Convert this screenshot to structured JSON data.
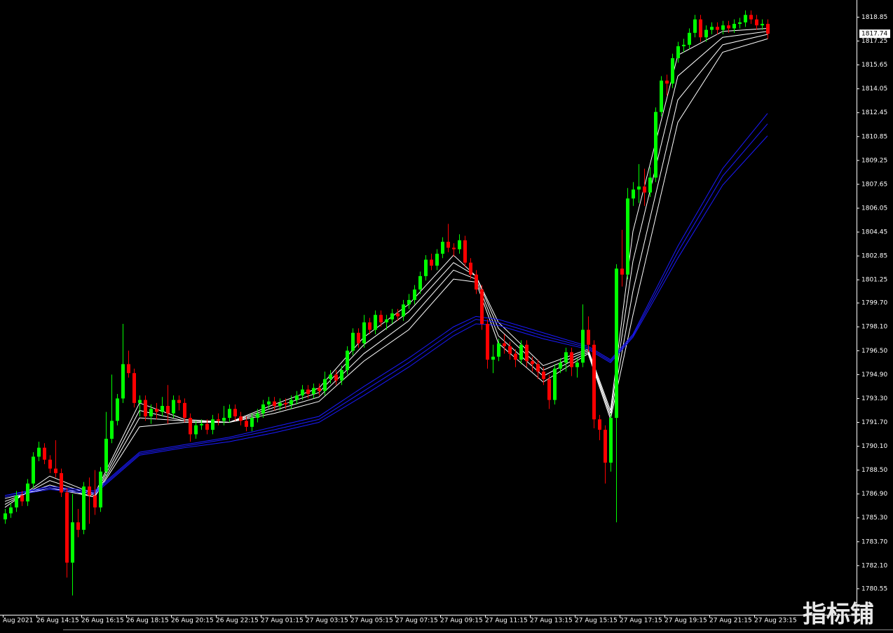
{
  "chart_data": {
    "type": "candlestick",
    "categories": [
      "Aug 2021",
      null,
      null,
      null,
      null,
      null,
      "26 Aug 14:15",
      null,
      null,
      null,
      null,
      null,
      null,
      null,
      "26 Aug 16:15",
      null,
      null,
      null,
      null,
      null,
      null,
      null,
      "26 Aug 18:15",
      null,
      null,
      null,
      null,
      null,
      null,
      null,
      "26 Aug 20:15",
      null,
      null,
      null,
      null,
      null,
      null,
      null,
      "26 Aug 22:15",
      null,
      null,
      null,
      null,
      null,
      null,
      null,
      "27 Aug 01:15",
      null,
      null,
      null,
      null,
      null,
      null,
      null,
      "27 Aug 03:15",
      null,
      null,
      null,
      null,
      null,
      null,
      null,
      "27 Aug 05:15",
      null,
      null,
      null,
      null,
      null,
      null,
      null,
      "27 Aug 07:15",
      null,
      null,
      null,
      null,
      null,
      null,
      null,
      "27 Aug 09:15",
      null,
      null,
      null,
      null,
      null,
      null,
      null,
      "27 Aug 11:15",
      null,
      null,
      null,
      null,
      null,
      null,
      null,
      "27 Aug 13:15",
      null,
      null,
      null,
      null,
      null,
      null,
      null,
      "27 Aug 15:15",
      null,
      null,
      null,
      null,
      null,
      null,
      null,
      "27 Aug 17:15",
      null,
      null,
      null,
      null,
      null,
      null,
      null,
      "27 Aug 19:15",
      null,
      null,
      null,
      null,
      null,
      null,
      null,
      "27 Aug 21:15",
      null,
      null,
      null,
      null,
      null,
      null,
      null,
      "27 Aug 23:15",
      null,
      null
    ],
    "open": [
      1785.2,
      1785.6,
      1786.0,
      1786.8,
      1786.4,
      1787.6,
      1789.4,
      1790.0,
      1789.2,
      1788.6,
      1788.3,
      1787.0,
      1782.3,
      1785.0,
      1784.5,
      1787.4,
      1786.8,
      1786.0,
      1788.4,
      1790.6,
      1791.8,
      1793.3,
      1795.6,
      1795.0,
      1793.0,
      1793.2,
      1792.1,
      1792.6,
      1792.4,
      1792.8,
      1792.3,
      1793.2,
      1793.0,
      1792.0,
      1790.9,
      1791.5,
      1791.6,
      1791.2,
      1791.9,
      1791.8,
      1792.0,
      1792.6,
      1792.1,
      1791.8,
      1791.4,
      1792.0,
      1792.3,
      1792.9,
      1793.1,
      1792.8,
      1793.0,
      1792.9,
      1793.2,
      1793.5,
      1793.9,
      1793.6,
      1794.0,
      1793.8,
      1794.6,
      1794.9,
      1794.5,
      1795.2,
      1796.5,
      1797.7,
      1797.0,
      1798.4,
      1797.9,
      1798.9,
      1798.4,
      1798.6,
      1799.0,
      1798.8,
      1799.6,
      1799.9,
      1800.6,
      1801.5,
      1802.6,
      1802.2,
      1803.0,
      1803.8,
      1803.4,
      1803.3,
      1803.9,
      1802.4,
      1801.6,
      1800.6,
      1798.3,
      1795.9,
      1796.1,
      1797.0,
      1796.8,
      1796.3,
      1795.9,
      1796.9,
      1795.8,
      1795.6,
      1795.1,
      1794.6,
      1793.2,
      1795.3,
      1795.7,
      1796.4,
      1795.4,
      1795.7,
      1797.9,
      1796.9,
      1791.9,
      1791.2,
      1789.0,
      1792.0,
      1802.0,
      1801.6,
      1806.7,
      1807.3,
      1807.5,
      1807.1,
      1808.1,
      1812.5,
      1814.6,
      1814.4,
      1816.1,
      1816.9,
      1817.0,
      1817.8,
      1818.7,
      1817.5,
      1818.0,
      1818.2,
      1818.0,
      1818.3,
      1818.1,
      1818.4,
      1818.5,
      1819.0,
      1818.7,
      1818.3,
      1818.4
    ],
    "high": [
      1785.9,
      1786.3,
      1787.1,
      1787.1,
      1787.9,
      1789.7,
      1790.4,
      1790.3,
      1789.5,
      1790.5,
      1788.6,
      1787.3,
      1786.9,
      1785.9,
      1787.7,
      1788.0,
      1788.5,
      1788.7,
      1792.4,
      1794.9,
      1793.6,
      1798.3,
      1796.5,
      1795.3,
      1793.5,
      1793.5,
      1792.9,
      1793.0,
      1793.4,
      1794.2,
      1793.5,
      1793.5,
      1793.3,
      1792.3,
      1791.8,
      1791.9,
      1791.9,
      1792.2,
      1792.3,
      1792.8,
      1792.9,
      1792.9,
      1792.4,
      1792.1,
      1792.3,
      1792.6,
      1793.2,
      1793.4,
      1793.4,
      1793.3,
      1793.3,
      1793.5,
      1793.8,
      1794.2,
      1794.2,
      1794.3,
      1794.3,
      1795.1,
      1795.2,
      1795.2,
      1795.5,
      1796.8,
      1798.0,
      1798.0,
      1798.9,
      1798.7,
      1799.2,
      1799.2,
      1798.9,
      1799.3,
      1799.3,
      1799.9,
      1800.3,
      1800.9,
      1801.8,
      1802.9,
      1803.0,
      1803.3,
      1804.1,
      1805.0,
      1803.7,
      1804.3,
      1804.2,
      1802.7,
      1801.9,
      1800.9,
      1798.6,
      1796.9,
      1797.3,
      1797.6,
      1797.1,
      1796.6,
      1797.2,
      1797.2,
      1796.1,
      1795.9,
      1795.4,
      1794.9,
      1795.6,
      1796.0,
      1796.7,
      1796.7,
      1796.0,
      1799.6,
      1798.8,
      1797.2,
      1792.2,
      1791.5,
      1792.3,
      1802.3,
      1804.6,
      1807.4,
      1807.8,
      1809.0,
      1808.7,
      1808.8,
      1812.8,
      1814.9,
      1815.0,
      1816.4,
      1817.2,
      1817.4,
      1818.1,
      1819.0,
      1819.0,
      1818.3,
      1818.5,
      1818.5,
      1818.6,
      1818.6,
      1818.7,
      1818.8,
      1819.3,
      1819.3,
      1819.0,
      1818.7,
      1818.7
    ],
    "low": [
      1784.9,
      1785.3,
      1785.7,
      1786.1,
      1786.1,
      1787.3,
      1789.1,
      1788.9,
      1788.3,
      1788.0,
      1786.7,
      1781.3,
      1780.1,
      1784.0,
      1784.2,
      1784.9,
      1785.5,
      1785.7,
      1788.1,
      1790.3,
      1791.5,
      1793.0,
      1794.7,
      1792.7,
      1792.1,
      1791.8,
      1791.6,
      1791.9,
      1792.1,
      1791.6,
      1792.0,
      1792.5,
      1791.7,
      1790.4,
      1790.6,
      1791.2,
      1790.9,
      1790.9,
      1791.5,
      1791.5,
      1791.7,
      1791.8,
      1791.5,
      1791.1,
      1791.1,
      1791.7,
      1792.0,
      1792.6,
      1792.5,
      1792.5,
      1792.6,
      1792.6,
      1792.9,
      1793.2,
      1793.3,
      1793.3,
      1793.5,
      1793.5,
      1794.3,
      1794.2,
      1794.2,
      1794.9,
      1796.2,
      1796.7,
      1796.7,
      1797.6,
      1797.6,
      1798.1,
      1797.9,
      1798.3,
      1798.5,
      1798.5,
      1799.3,
      1799.6,
      1800.3,
      1801.2,
      1801.9,
      1801.9,
      1802.7,
      1803.1,
      1802.8,
      1803.0,
      1802.1,
      1801.3,
      1800.3,
      1797.9,
      1795.3,
      1795.0,
      1795.8,
      1796.3,
      1795.9,
      1795.4,
      1795.6,
      1795.4,
      1795.1,
      1794.6,
      1794.2,
      1792.6,
      1792.9,
      1795.0,
      1795.1,
      1794.8,
      1794.7,
      1795.4,
      1796.4,
      1791.3,
      1790.5,
      1787.6,
      1788.4,
      1785.0,
      1800.8,
      1801.3,
      1806.2,
      1806.4,
      1806.2,
      1806.8,
      1807.8,
      1812.2,
      1813.6,
      1814.1,
      1815.8,
      1816.5,
      1816.7,
      1817.5,
      1817.2,
      1817.2,
      1817.7,
      1817.7,
      1817.7,
      1817.8,
      1817.8,
      1818.1,
      1818.2,
      1818.4,
      1818.0,
      1818.0,
      1817.4
    ],
    "close": [
      1785.6,
      1786.0,
      1786.8,
      1786.4,
      1787.6,
      1789.4,
      1790.0,
      1789.2,
      1788.6,
      1788.3,
      1787.0,
      1782.3,
      1785.0,
      1784.5,
      1787.4,
      1786.8,
      1786.0,
      1788.4,
      1790.6,
      1791.8,
      1793.3,
      1795.6,
      1795.0,
      1793.0,
      1793.2,
      1792.1,
      1792.6,
      1792.4,
      1792.8,
      1792.3,
      1793.2,
      1793.0,
      1792.0,
      1790.9,
      1791.5,
      1791.6,
      1791.2,
      1791.9,
      1791.8,
      1792.0,
      1792.6,
      1792.1,
      1791.8,
      1791.4,
      1792.0,
      1792.3,
      1792.9,
      1793.1,
      1792.8,
      1793.0,
      1792.9,
      1793.2,
      1793.5,
      1793.9,
      1793.6,
      1794.0,
      1793.8,
      1794.6,
      1794.9,
      1794.5,
      1795.2,
      1796.5,
      1797.7,
      1797.0,
      1798.4,
      1797.9,
      1798.9,
      1798.4,
      1798.6,
      1799.0,
      1798.8,
      1799.6,
      1799.9,
      1800.6,
      1801.5,
      1802.6,
      1802.2,
      1803.0,
      1803.8,
      1803.4,
      1803.3,
      1803.9,
      1802.4,
      1801.6,
      1800.6,
      1798.3,
      1795.9,
      1796.1,
      1797.0,
      1796.8,
      1796.3,
      1795.9,
      1796.9,
      1795.8,
      1795.6,
      1795.1,
      1794.6,
      1793.2,
      1795.3,
      1795.7,
      1796.4,
      1795.4,
      1795.7,
      1797.9,
      1796.9,
      1791.9,
      1791.2,
      1789.0,
      1792.0,
      1802.0,
      1801.6,
      1806.7,
      1807.3,
      1807.5,
      1807.1,
      1808.1,
      1812.5,
      1814.6,
      1814.4,
      1816.1,
      1816.9,
      1817.0,
      1817.8,
      1818.7,
      1817.5,
      1818.0,
      1818.2,
      1818.0,
      1818.3,
      1818.1,
      1818.4,
      1818.5,
      1819.0,
      1818.7,
      1818.3,
      1818.4,
      1817.74
    ],
    "up_color": "#00ff00",
    "down_color": "#ff0000",
    "ma_x": [
      0,
      8,
      16,
      24,
      32,
      40,
      48,
      56,
      64,
      72,
      80,
      84,
      88,
      96,
      104,
      108,
      112,
      120,
      128,
      136
    ],
    "lines": [
      {
        "color": "#ffffff",
        "values": [
          1786.0,
          1788.1,
          1786.9,
          1793.0,
          1791.9,
          1791.7,
          1792.9,
          1794.0,
          1797.4,
          1799.6,
          1802.9,
          1801.5,
          1798.4,
          1795.5,
          1796.6,
          1792.5,
          1804.5,
          1816.3,
          1817.9,
          1818.1
        ]
      },
      {
        "color": "#ffffff",
        "values": [
          1786.2,
          1787.8,
          1786.8,
          1792.5,
          1791.8,
          1791.7,
          1792.7,
          1793.7,
          1796.9,
          1799.1,
          1802.4,
          1801.5,
          1798.0,
          1795.2,
          1796.5,
          1792.3,
          1802.5,
          1814.9,
          1817.5,
          1817.9
        ]
      },
      {
        "color": "#ffffff",
        "values": [
          1786.4,
          1787.5,
          1786.7,
          1792.0,
          1791.8,
          1791.7,
          1792.5,
          1793.4,
          1796.3,
          1798.5,
          1801.9,
          1801.3,
          1797.5,
          1794.8,
          1796.4,
          1792.1,
          1800.5,
          1813.3,
          1817.0,
          1817.7
        ]
      },
      {
        "color": "#ffffff",
        "values": [
          1786.6,
          1787.3,
          1786.7,
          1791.4,
          1791.7,
          1791.7,
          1792.3,
          1793.1,
          1795.8,
          1797.9,
          1801.3,
          1801.1,
          1797.0,
          1794.4,
          1796.3,
          1791.9,
          1798.9,
          1811.8,
          1816.5,
          1817.4
        ]
      },
      {
        "color": "#1a1aff",
        "values": [
          1786.8,
          1787.4,
          1787.1,
          1789.7,
          1790.2,
          1790.7,
          1791.4,
          1792.1,
          1794.1,
          1796.0,
          1798.1,
          1798.8,
          1798.6,
          1797.7,
          1796.8,
          1795.9,
          1797.6,
          1803.5,
          1808.7,
          1812.4
        ]
      },
      {
        "color": "#1a1aff",
        "values": [
          1786.8,
          1787.3,
          1787.0,
          1789.6,
          1790.1,
          1790.6,
          1791.2,
          1791.9,
          1793.8,
          1795.7,
          1797.8,
          1798.6,
          1798.4,
          1797.5,
          1796.7,
          1795.8,
          1797.5,
          1803.1,
          1808.2,
          1811.7
        ]
      },
      {
        "color": "#1a1aff",
        "values": [
          1786.7,
          1787.2,
          1786.9,
          1789.5,
          1790.0,
          1790.4,
          1791.0,
          1791.7,
          1793.5,
          1795.4,
          1797.5,
          1798.3,
          1798.2,
          1797.3,
          1796.6,
          1795.7,
          1797.4,
          1802.7,
          1807.6,
          1810.9
        ]
      }
    ],
    "ylim": [
      1778.9,
      1820.0
    ],
    "yticks": [
      1818.85,
      1817.25,
      1815.65,
      1814.05,
      1812.45,
      1810.85,
      1809.25,
      1807.65,
      1806.05,
      1804.45,
      1802.85,
      1801.25,
      {
        "value": 1799.7,
        "label": "1799.70"
      },
      {
        "value": 1798.1,
        "label": "1798.10"
      },
      {
        "value": 1796.5,
        "label": "1796.50"
      },
      {
        "value": 1794.9,
        "label": "1794.90"
      },
      {
        "value": 1793.3,
        "label": "1793.30"
      },
      {
        "value": 1791.7,
        "label": "1791.70"
      },
      {
        "value": 1790.1,
        "label": "1790.10"
      },
      {
        "value": 1788.5,
        "label": "1788.50"
      },
      {
        "value": 1786.9,
        "label": "1786.90"
      },
      {
        "value": 1785.3,
        "label": "1785.30"
      },
      {
        "value": 1783.7,
        "label": "1783.70"
      },
      {
        "value": 1782.1,
        "label": "1782.10"
      },
      1780.55
    ]
  },
  "watermark": "指标铺"
}
